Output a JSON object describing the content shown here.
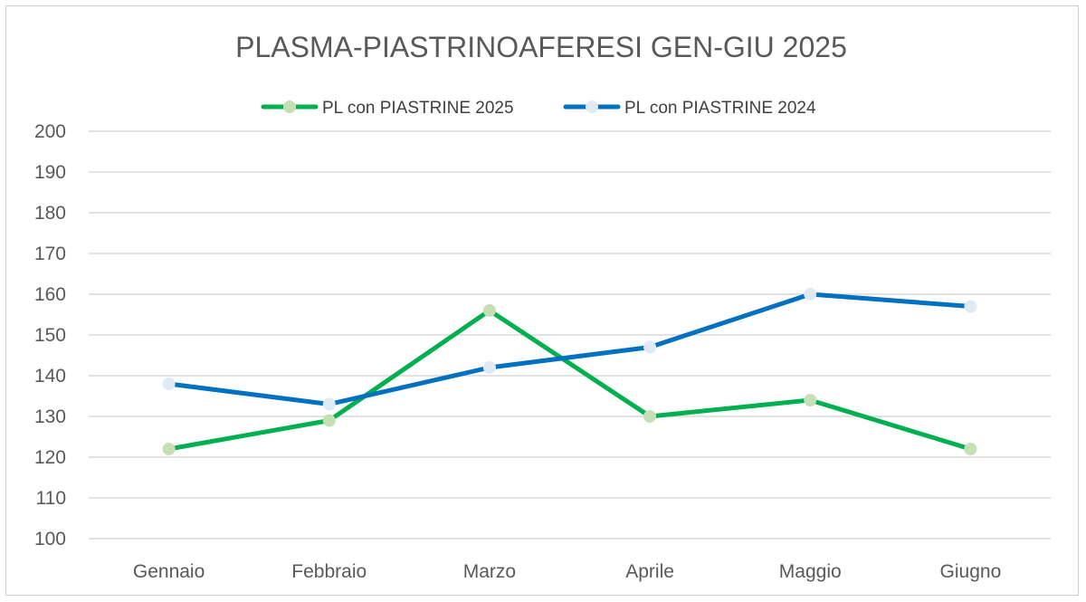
{
  "chart_data": {
    "type": "line",
    "title": "PLASMA-PIASTRINOAFERESI GEN-GIU 2025",
    "xlabel": "",
    "ylabel": "",
    "categories": [
      "Gennaio",
      "Febbraio",
      "Marzo",
      "Aprile",
      "Maggio",
      "Giugno"
    ],
    "ylim": [
      100,
      200
    ],
    "yticks": [
      "100",
      "110",
      "120",
      "130",
      "140",
      "150",
      "160",
      "170",
      "180",
      "190",
      "200"
    ],
    "grid": true,
    "legend_position": "top",
    "series": [
      {
        "name": "PL con PIASTRINE 2025",
        "values": [
          122,
          129,
          156,
          130,
          134,
          122
        ],
        "line_color": "#00b050",
        "marker_color": "#c5e0b4"
      },
      {
        "name": "PL con PIASTRINE 2024",
        "values": [
          138,
          133,
          142,
          147,
          160,
          157
        ],
        "line_color": "#0070c0",
        "marker_color": "#deebf7"
      }
    ]
  }
}
